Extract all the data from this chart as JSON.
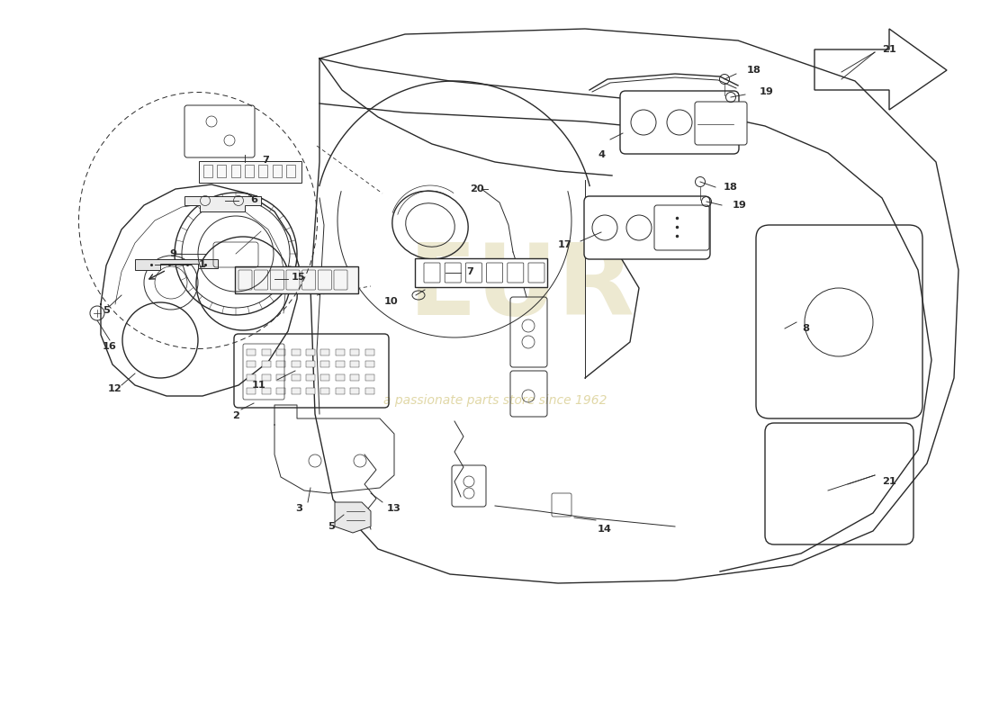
{
  "bg_color": "#ffffff",
  "line_color": "#2a2a2a",
  "wm_color1": "#b8a84a",
  "wm_color2": "#c8b860",
  "wm_text1": "EUR",
  "wm_text2": "a passionate parts store since 1962",
  "figsize": [
    11.0,
    8.0
  ],
  "dpi": 100,
  "xlim": [
    0,
    11
  ],
  "ylim": [
    0,
    8
  ]
}
